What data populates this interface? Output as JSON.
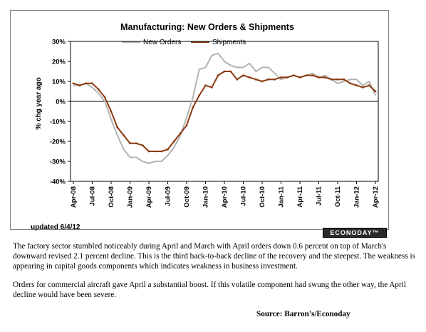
{
  "chart_data": {
    "type": "line",
    "title": "Manufacturing: New Orders & Shipments",
    "ylabel": "% chg year ago",
    "ylim": [
      -40,
      30
    ],
    "yticks": [
      "30%",
      "20%",
      "10%",
      "0%",
      "-10%",
      "-20%",
      "-30%",
      "-40%"
    ],
    "ytick_values": [
      30,
      20,
      10,
      0,
      -10,
      -20,
      -30,
      -40
    ],
    "xtick_labels": [
      "Apr-08",
      "Jul-08",
      "Oct-08",
      "Jan-09",
      "Apr-09",
      "Jul-09",
      "Oct-09",
      "Jan-10",
      "Apr-10",
      "Jul-10",
      "Oct-10",
      "Jan-11",
      "Apr-11",
      "Jul-11",
      "Oct-11",
      "Jan-12",
      "Apr-12"
    ],
    "x": [
      "Apr-08",
      "May-08",
      "Jun-08",
      "Jul-08",
      "Aug-08",
      "Sep-08",
      "Oct-08",
      "Nov-08",
      "Dec-08",
      "Jan-09",
      "Feb-09",
      "Mar-09",
      "Apr-09",
      "May-09",
      "Jun-09",
      "Jul-09",
      "Aug-09",
      "Sep-09",
      "Oct-09",
      "Nov-09",
      "Dec-09",
      "Jan-10",
      "Feb-10",
      "Mar-10",
      "Apr-10",
      "May-10",
      "Jun-10",
      "Jul-10",
      "Aug-10",
      "Sep-10",
      "Oct-10",
      "Nov-10",
      "Dec-10",
      "Jan-11",
      "Feb-11",
      "Mar-11",
      "Apr-11",
      "May-11",
      "Jun-11",
      "Jul-11",
      "Aug-11",
      "Sep-11",
      "Oct-11",
      "Nov-11",
      "Dec-11",
      "Jan-12",
      "Feb-12",
      "Mar-12",
      "Apr-12"
    ],
    "series": [
      {
        "name": "New Orders",
        "color": "#b3b3b3",
        "values": [
          8,
          8,
          9,
          7,
          4,
          0,
          -9,
          -17,
          -24,
          -28,
          -28,
          -30,
          -31,
          -30,
          -30,
          -27,
          -23,
          -17,
          -8,
          2,
          16,
          17,
          23,
          24,
          20,
          18,
          17,
          17,
          19,
          15,
          17,
          17,
          14,
          11,
          12,
          13,
          12,
          13,
          14,
          12,
          13,
          11,
          9,
          10,
          11,
          11,
          8,
          10,
          3
        ]
      },
      {
        "name": "Shipments",
        "color": "#8b3a0f",
        "values": [
          9,
          8,
          9,
          9,
          6,
          2,
          -5,
          -13,
          -17,
          -21,
          -21,
          -22,
          -25,
          -25,
          -25,
          -24,
          -20,
          -16,
          -12,
          -3,
          3,
          8,
          7,
          13,
          15,
          15,
          11,
          13,
          12,
          11,
          10,
          11,
          11,
          12,
          12,
          13,
          12,
          13,
          13,
          12,
          12,
          11,
          11,
          11,
          9,
          8,
          7,
          8,
          5
        ]
      }
    ],
    "legend": "top",
    "grid": false
  },
  "footer": {
    "updated": "updated 6/4/12",
    "logo": "ECONODAY™"
  },
  "text": {
    "paragraph1": "The factory sector stumbled noticeably during April and March with April orders down 0.6 percent on top of March's downward revised 2.1 percent decline. This is the third back-to-back decline of the recovery and the steepest. The weakness is appearing in capital goods components which indicates weakness in business investment.",
    "paragraph2": "Orders for commercial aircraft gave April a substantial boost. If this volatile component had swung the other way, the April decline would have been severe.",
    "source": "Source:  Barron's/Econoday"
  }
}
